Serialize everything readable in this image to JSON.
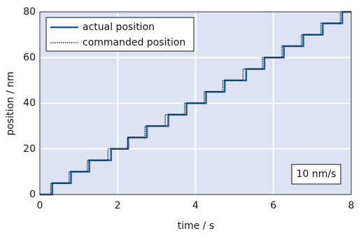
{
  "chart_data": {
    "type": "line",
    "xlabel": "time / s",
    "ylabel": "position / nm",
    "xlim": [
      0,
      8
    ],
    "xticks": [
      0,
      2,
      4,
      6,
      8
    ],
    "ylim": [
      0,
      80
    ],
    "yticks": [
      0,
      20,
      40,
      60,
      80
    ],
    "grid": true,
    "legend": "upper left",
    "annotation": "10 nm/s",
    "series": [
      {
        "name": "actual position",
        "color": "#1f5f99",
        "dash": "solid",
        "x": [
          0,
          0.32,
          0.32,
          0.8,
          0.8,
          1.27,
          1.27,
          1.83,
          1.83,
          2.27,
          2.27,
          2.75,
          2.75,
          3.3,
          3.3,
          3.77,
          3.77,
          4.27,
          4.27,
          4.75,
          4.75,
          5.3,
          5.3,
          5.77,
          5.77,
          6.27,
          6.27,
          6.77,
          6.77,
          7.27,
          7.27,
          7.77,
          7.77,
          8
        ],
        "values": [
          0,
          0,
          5,
          5,
          10,
          10,
          15,
          15,
          20,
          20,
          25,
          25,
          30,
          30,
          35,
          35,
          40,
          40,
          45,
          45,
          50,
          50,
          55,
          55,
          60,
          60,
          65,
          65,
          70,
          70,
          75,
          75,
          80,
          80
        ]
      },
      {
        "name": "commanded position",
        "color": "#000000",
        "dash": "dotted",
        "x": [
          0,
          0.28,
          0.28,
          0.75,
          0.75,
          1.22,
          1.22,
          1.75,
          1.75,
          2.25,
          2.25,
          2.7,
          2.7,
          3.22,
          3.22,
          3.72,
          3.72,
          4.22,
          4.22,
          4.7,
          4.7,
          5.22,
          5.22,
          5.72,
          5.72,
          6.22,
          6.22,
          6.72,
          6.72,
          7.22,
          7.22,
          7.72,
          7.72,
          8
        ],
        "values": [
          0,
          0,
          5,
          5,
          10,
          10,
          15,
          15,
          20,
          20,
          25,
          25,
          30,
          30,
          35,
          35,
          40,
          40,
          45,
          45,
          50,
          50,
          55,
          55,
          60,
          60,
          65,
          65,
          70,
          70,
          75,
          75,
          80,
          80
        ]
      }
    ]
  }
}
